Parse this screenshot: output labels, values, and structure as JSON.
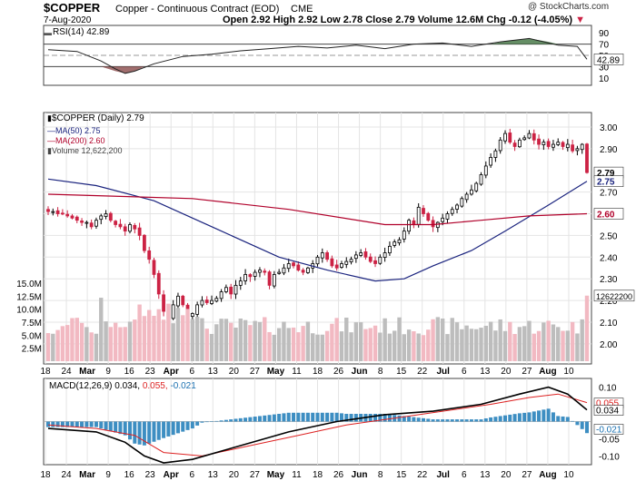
{
  "header": {
    "symbol": "$COPPER",
    "name": "Copper - Continuous Contract (EOD)",
    "exchange": "CME",
    "date": "7-Aug-2020",
    "open": "2.92",
    "high": "2.92",
    "low": "2.78",
    "close": "2.79",
    "volume": "12.6M",
    "change": "-0.12 (-4.05%)",
    "copyright": "@ StockCharts.com"
  },
  "rsi": {
    "label": "RSI(14) 42.89",
    "value_tag": "42.89",
    "ticks": [
      "90",
      "70",
      "50",
      "30",
      "10"
    ]
  },
  "legend": {
    "price": "$COPPER (Daily) 2.79",
    "ma50": "MA(50) 2.75",
    "ma200": "MA(200) 2.60",
    "volume": "Volume 12,622,200"
  },
  "price_tags": {
    "close": "2.79",
    "ma50": "2.75",
    "ma200": "2.60",
    "volume": "12622200"
  },
  "macd": {
    "label_prefix": "MACD(12,26,9)",
    "val1": "0.034,",
    "val2": "0.055,",
    "val3": "-0.021",
    "tags": {
      "signal": "0.055",
      "macd": "0.034",
      "hist": "-0.021"
    }
  },
  "colors": {
    "up": "#000000",
    "down": "#cc2244",
    "ma50": "#1a237e",
    "ma200": "#b0002a",
    "rsi_band": "#4a7a4a"
  },
  "chart_data": {
    "type": "candlestick",
    "title": "$COPPER Copper - Continuous Contract (EOD) CME",
    "x_tick_labels": [
      "18",
      "24",
      "Mar",
      "9",
      "16",
      "23",
      "Apr",
      "6",
      "13",
      "20",
      "27",
      "May",
      "11",
      "18",
      "26",
      "Jun",
      "8",
      "15",
      "22",
      "Jul",
      "6",
      "13",
      "20",
      "27",
      "Aug",
      "10"
    ],
    "price_axis": {
      "min": 1.92,
      "max": 3.05,
      "ticks": [
        "3.00",
        "2.90",
        "2.70",
        "2.60",
        "2.50",
        "2.40",
        "2.30",
        "2.20",
        "2.10",
        "2.00"
      ]
    },
    "volume_axis": {
      "max": 15.0,
      "ticks": [
        "15.0M",
        "12.5M",
        "10.0M",
        "7.5M",
        "5.0M",
        "2.5M"
      ]
    },
    "macd_axis": {
      "ticks": [
        "0.10",
        "0.05",
        "-0.05",
        "-0.10"
      ]
    },
    "series": [
      {
        "name": "$COPPER",
        "close": [
          2.61,
          2.61,
          2.6,
          2.6,
          2.59,
          2.58,
          2.57,
          2.56,
          2.56,
          2.54,
          2.57,
          2.59,
          2.6,
          2.57,
          2.55,
          2.54,
          2.52,
          2.55,
          2.53,
          2.5,
          2.43,
          2.39,
          2.32,
          2.23,
          2.15,
          2.12,
          2.18,
          2.22,
          2.18,
          2.13,
          2.14,
          2.18,
          2.2,
          2.19,
          2.2,
          2.21,
          2.24,
          2.26,
          2.23,
          2.27,
          2.29,
          2.32,
          2.31,
          2.33,
          2.34,
          2.33,
          2.27,
          2.32,
          2.33,
          2.35,
          2.37,
          2.36,
          2.34,
          2.33,
          2.35,
          2.37,
          2.4,
          2.42,
          2.39,
          2.36,
          2.35,
          2.37,
          2.38,
          2.39,
          2.41,
          2.42,
          2.4,
          2.38,
          2.37,
          2.4,
          2.42,
          2.45,
          2.47,
          2.48,
          2.52,
          2.57,
          2.55,
          2.63,
          2.6,
          2.57,
          2.54,
          2.56,
          2.58,
          2.6,
          2.62,
          2.64,
          2.67,
          2.69,
          2.71,
          2.74,
          2.78,
          2.82,
          2.86,
          2.89,
          2.94,
          2.97,
          2.93,
          2.91,
          2.94,
          2.95,
          2.97,
          2.94,
          2.92,
          2.93,
          2.91,
          2.92,
          2.93,
          2.91,
          2.92,
          2.89,
          2.9,
          2.92,
          2.79
        ]
      },
      {
        "name": "MA(50)",
        "last": 2.75
      },
      {
        "name": "MA(200)",
        "last": 2.6
      },
      {
        "name": "Volume",
        "last": 12622200
      },
      {
        "name": "RSI(14)",
        "last": 42.89
      },
      {
        "name": "MACD(12,26,9)",
        "macd": 0.034,
        "signal": 0.055,
        "histogram": -0.021
      }
    ]
  }
}
